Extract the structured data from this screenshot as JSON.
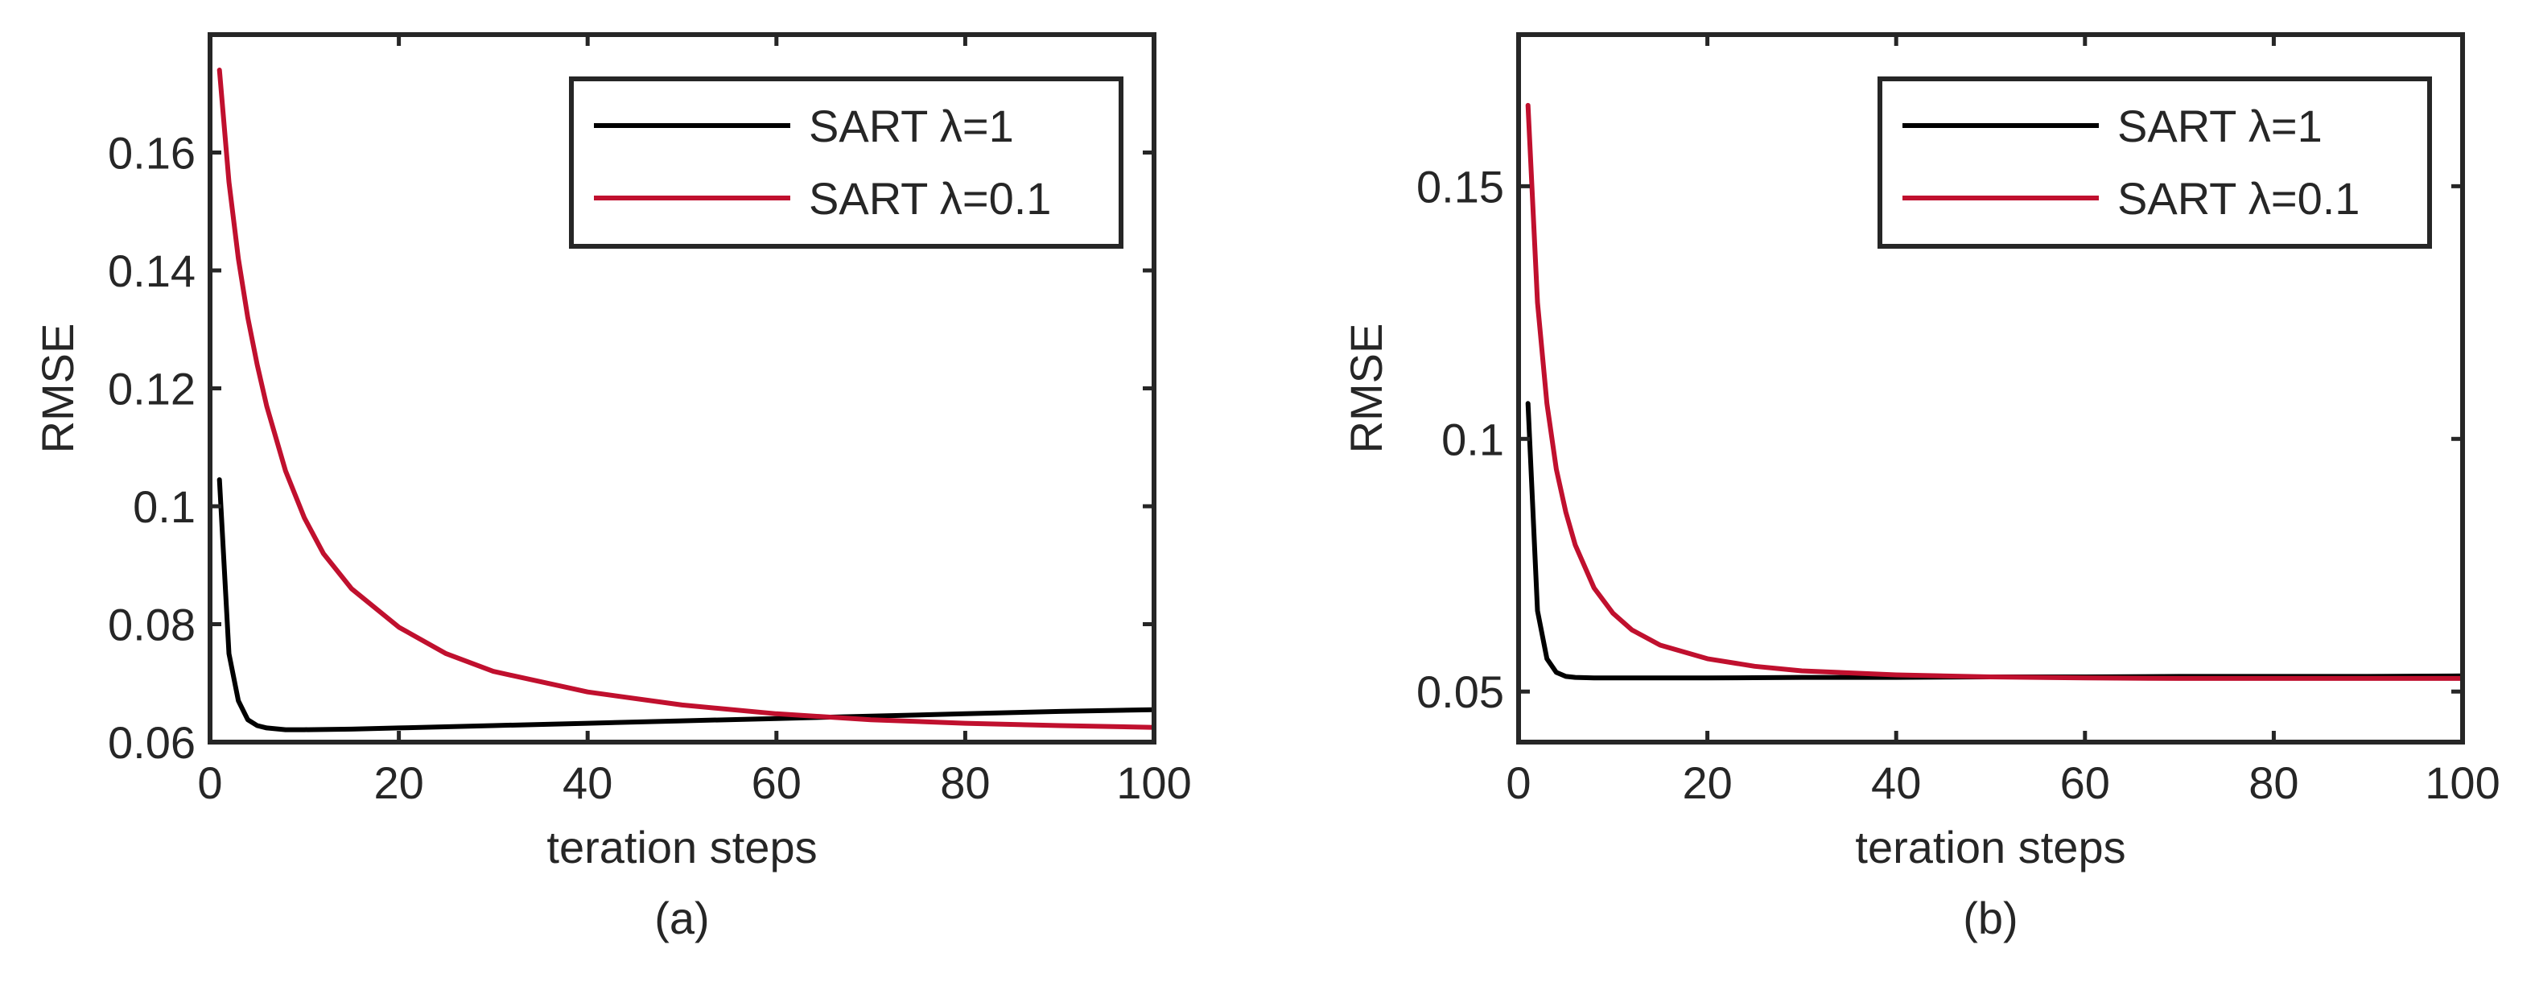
{
  "chart_data": [
    {
      "panel_label": "(a)",
      "type": "line",
      "xlabel": "teration steps",
      "ylabel": "RMSE",
      "xlim": [
        0,
        100
      ],
      "ylim": [
        0.06,
        0.18
      ],
      "xticks": [
        0,
        20,
        40,
        60,
        80,
        100
      ],
      "xtick_labels": [
        "0",
        "20",
        "40",
        "60",
        "80",
        "100"
      ],
      "yticks": [
        0.06,
        0.08,
        0.1,
        0.12,
        0.14,
        0.16
      ],
      "ytick_labels": [
        "0.06",
        "0.08",
        "0.1",
        "0.12",
        "0.14",
        "0.16"
      ],
      "grid": false,
      "legend_position": "top-right",
      "series": [
        {
          "name": "SART λ=1",
          "color": "#000000",
          "x": [
            1,
            2,
            3,
            4,
            5,
            6,
            8,
            10,
            15,
            20,
            30,
            40,
            50,
            60,
            70,
            80,
            90,
            100
          ],
          "y": [
            0.1045,
            0.075,
            0.067,
            0.0638,
            0.0628,
            0.0624,
            0.0621,
            0.0621,
            0.0622,
            0.0624,
            0.0628,
            0.0632,
            0.0636,
            0.064,
            0.0644,
            0.0648,
            0.0652,
            0.0655
          ]
        },
        {
          "name": "SART λ=0.1",
          "color": "#c0102e",
          "x": [
            1,
            2,
            3,
            4,
            5,
            6,
            8,
            10,
            12,
            15,
            20,
            25,
            30,
            40,
            50,
            60,
            70,
            80,
            90,
            100
          ],
          "y": [
            0.174,
            0.155,
            0.142,
            0.132,
            0.124,
            0.117,
            0.106,
            0.098,
            0.092,
            0.086,
            0.0795,
            0.075,
            0.072,
            0.0685,
            0.0663,
            0.0648,
            0.0638,
            0.0632,
            0.0628,
            0.0625
          ]
        }
      ]
    },
    {
      "panel_label": "(b)",
      "type": "line",
      "xlabel": "teration steps",
      "ylabel": "RMSE",
      "xlim": [
        0,
        100
      ],
      "ylim": [
        0.04,
        0.18
      ],
      "xticks": [
        0,
        20,
        40,
        60,
        80,
        100
      ],
      "xtick_labels": [
        "0",
        "20",
        "40",
        "60",
        "80",
        "100"
      ],
      "yticks": [
        0.05,
        0.1,
        0.15
      ],
      "ytick_labels": [
        "0.05",
        "0.1",
        "0.15"
      ],
      "grid": false,
      "legend_position": "top-right",
      "series": [
        {
          "name": "SART λ=1",
          "color": "#000000",
          "x": [
            1,
            2,
            3,
            4,
            5,
            6,
            8,
            10,
            20,
            30,
            40,
            50,
            60,
            70,
            80,
            90,
            100
          ],
          "y": [
            0.107,
            0.066,
            0.0565,
            0.0538,
            0.053,
            0.0528,
            0.0527,
            0.0527,
            0.0527,
            0.0528,
            0.0528,
            0.0529,
            0.0529,
            0.053,
            0.053,
            0.053,
            0.0531
          ]
        },
        {
          "name": "SART λ=0.1",
          "color": "#c0102e",
          "x": [
            1,
            2,
            3,
            4,
            5,
            6,
            8,
            10,
            12,
            15,
            20,
            25,
            30,
            40,
            50,
            60,
            70,
            80,
            90,
            100
          ],
          "y": [
            0.166,
            0.127,
            0.107,
            0.094,
            0.0855,
            0.079,
            0.0705,
            0.0655,
            0.0622,
            0.0592,
            0.0565,
            0.055,
            0.0541,
            0.0533,
            0.0529,
            0.0527,
            0.0526,
            0.0526,
            0.0526,
            0.0526
          ]
        }
      ]
    }
  ]
}
